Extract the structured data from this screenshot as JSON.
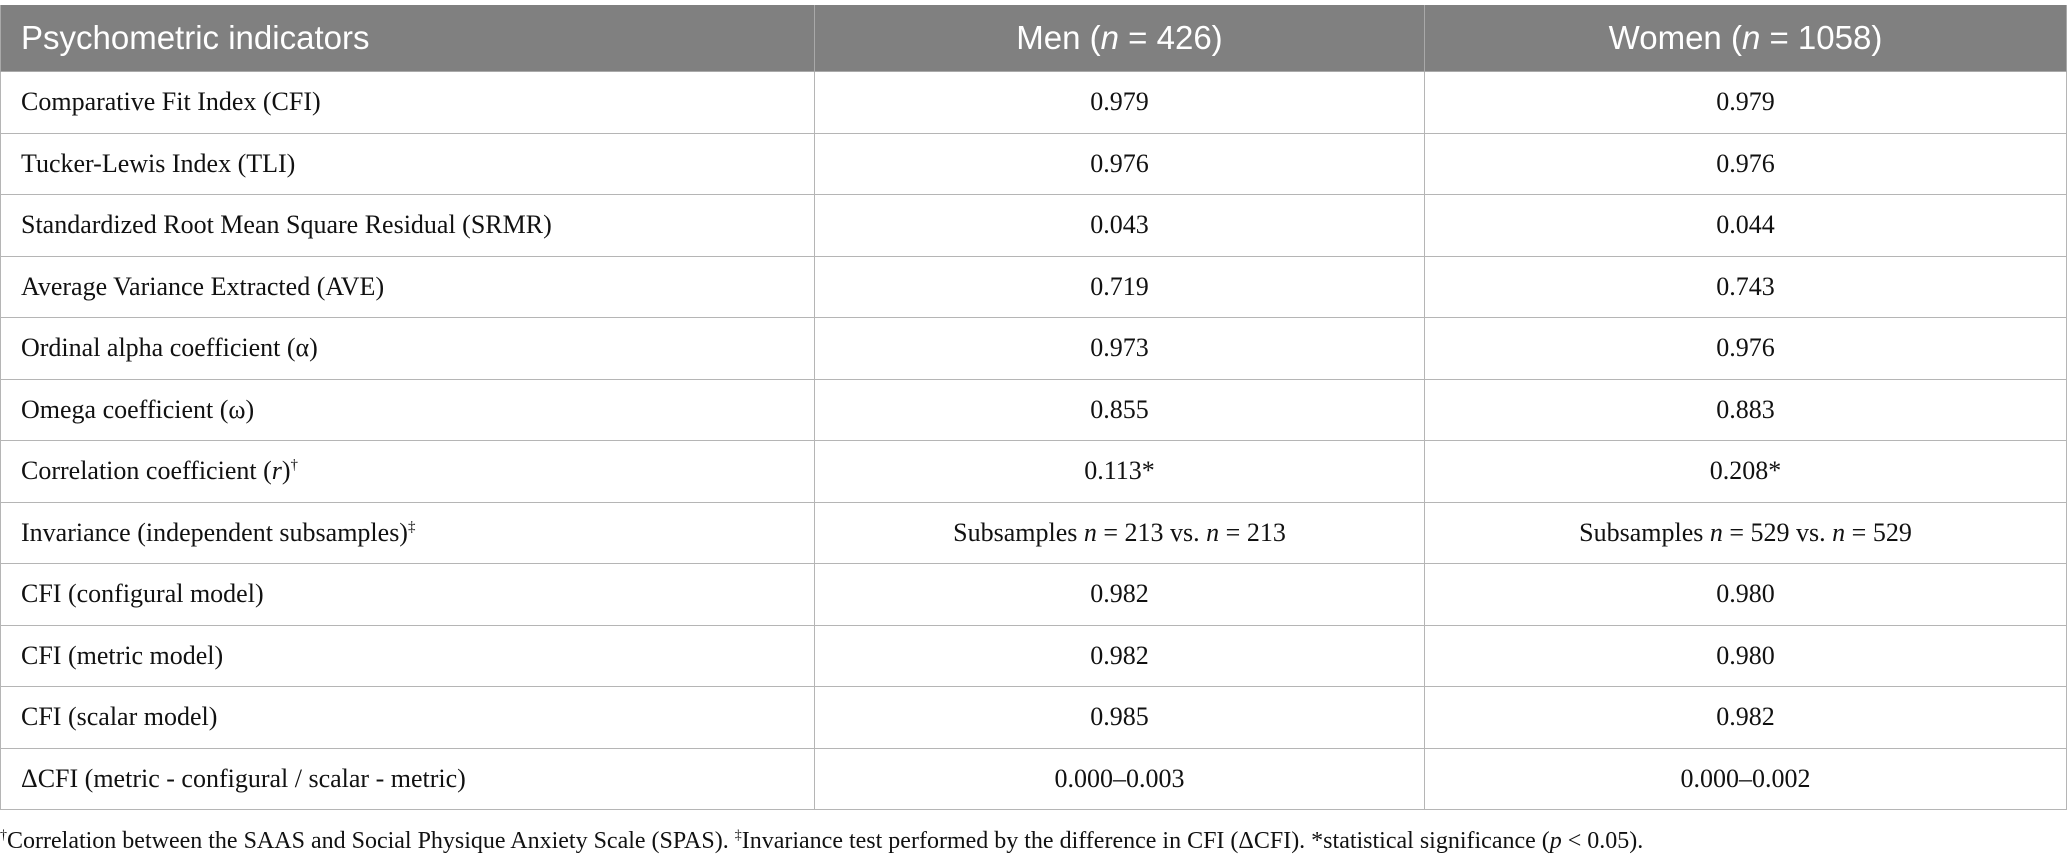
{
  "table": {
    "headers": {
      "col1": "Psychometric indicators",
      "col2_pre": "Men (",
      "col2_n": "n",
      "col2_post": " = 426)",
      "col3_pre": "Women (",
      "col3_n": "n",
      "col3_post": " = 1058)"
    },
    "rows": [
      {
        "label": "Comparative Fit Index (CFI)",
        "men": "0.979",
        "women": "0.979"
      },
      {
        "label": "Tucker-Lewis Index (TLI)",
        "men": "0.976",
        "women": "0.976"
      },
      {
        "label": "Standardized Root Mean Square Residual (SRMR)",
        "men": "0.043",
        "women": "0.044"
      },
      {
        "label": "Average Variance Extracted (AVE)",
        "men": "0.719",
        "women": "0.743"
      },
      {
        "label": "Ordinal alpha coefficient (α)",
        "men": "0.973",
        "women": "0.976"
      },
      {
        "label": "Omega coefficient (ω)",
        "men": "0.855",
        "women": "0.883"
      },
      {
        "label_pre": "Correlation coefficient (",
        "label_italic": "r",
        "label_post": ")",
        "label_sup": "†",
        "men": "0.113*",
        "women": "0.208*"
      },
      {
        "label": "Invariance (independent subsamples)",
        "label_sup": "‡",
        "men_parts": [
          "Subsamples ",
          "n",
          " = 213 vs. ",
          "n",
          " = 213"
        ],
        "women_parts": [
          "Subsamples ",
          "n",
          " = 529 vs. ",
          "n",
          " = 529"
        ]
      },
      {
        "label": "CFI (configural model)",
        "men": "0.982",
        "women": "0.980"
      },
      {
        "label": "CFI (metric model)",
        "men": "0.982",
        "women": "0.980"
      },
      {
        "label": "CFI (scalar model)",
        "men": "0.985",
        "women": "0.982"
      },
      {
        "label": "ΔCFI (metric - configural / scalar - metric)",
        "men": "0.000–0.003",
        "women": "0.000–0.002"
      }
    ]
  },
  "footnote": {
    "dagger": "†",
    "part1": "Correlation between the SAAS and Social Physique Anxiety Scale (SPAS). ",
    "ddagger": "‡",
    "part2": "Invariance test performed by the difference in CFI (ΔCFI). *statistical significance (",
    "p": "p",
    "part3": " < 0.05)."
  }
}
